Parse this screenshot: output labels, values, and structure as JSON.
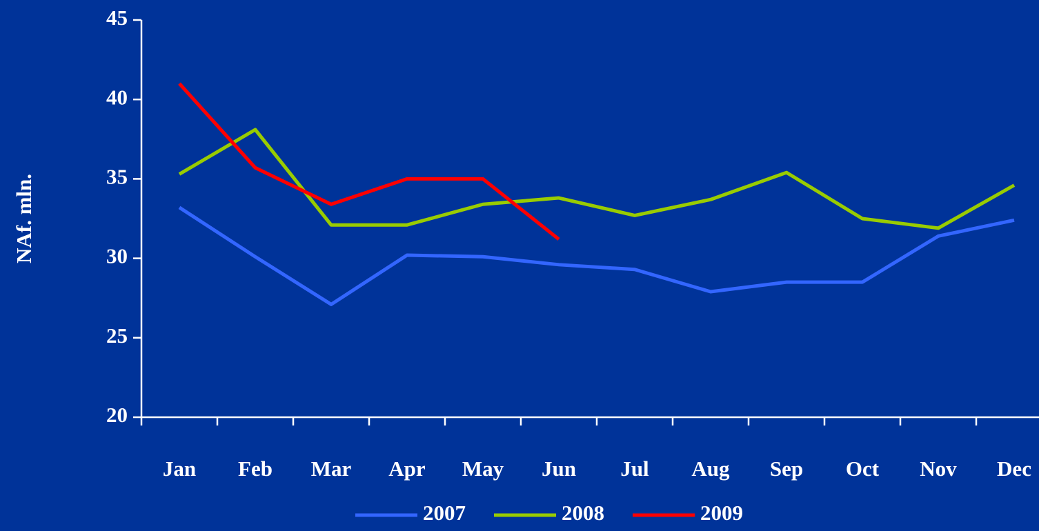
{
  "chart_data": {
    "type": "line",
    "y_label": "NAf. mln.",
    "categories": [
      "Jan",
      "Feb",
      "Mar",
      "Apr",
      "May",
      "Jun",
      "Jul",
      "Aug",
      "Sep",
      "Oct",
      "Nov",
      "Dec"
    ],
    "series": [
      {
        "name": "2007",
        "color": "#3366ff",
        "values": [
          33.2,
          30.1,
          27.1,
          30.2,
          30.1,
          29.6,
          29.3,
          27.9,
          28.5,
          28.5,
          31.4,
          32.4
        ]
      },
      {
        "name": "2008",
        "color": "#99cc00",
        "values": [
          35.3,
          38.1,
          32.1,
          32.1,
          33.4,
          33.8,
          32.7,
          33.7,
          35.4,
          32.5,
          31.9,
          34.6
        ]
      },
      {
        "name": "2009",
        "color": "#ff0000",
        "values": [
          41.0,
          35.7,
          33.4,
          35.0,
          35.0,
          31.2,
          null,
          null,
          null,
          null,
          null,
          null
        ]
      }
    ],
    "ylim": [
      20,
      45
    ],
    "yticks": [
      20,
      25,
      30,
      35,
      40,
      45
    ],
    "grid": false,
    "legend": "bottom"
  }
}
